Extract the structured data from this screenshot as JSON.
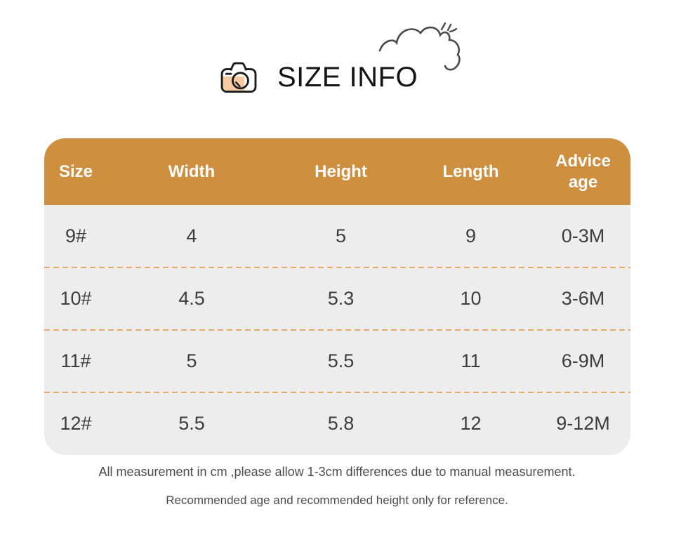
{
  "title": {
    "text": "SIZE INFO"
  },
  "decorations": {
    "camera_icon": "camera-icon",
    "cloud_doodle": "cloud-doodle-icon"
  },
  "table": {
    "headers": [
      "Size",
      "Width",
      "Height",
      "Length",
      "Advice age"
    ],
    "rows": [
      [
        "9#",
        "4",
        "5",
        "9",
        "0-3M"
      ],
      [
        "10#",
        "4.5",
        "5.3",
        "10",
        "3-6M"
      ],
      [
        "11#",
        "5",
        "5.5",
        "11",
        "6-9M"
      ],
      [
        "12#",
        "5.5",
        "5.8",
        "12",
        "9-12M"
      ]
    ]
  },
  "notes": [
    "All measurement in cm ,please allow 1-3cm differences due to manual measurement.",
    "Recommended age and recommended height only for reference."
  ],
  "colors": {
    "header_bg": "#CE8F3E",
    "row_bg": "#EDEDED",
    "row_divider_dash": "#E9A966",
    "header_text": "#FFFFFF",
    "cell_text": "#3D3D3D",
    "note_text": "#4D4D4D",
    "title_text": "#141414",
    "camera_fill": "#F8CBA3",
    "camera_stroke": "#1B1B1B",
    "doodle_stroke": "#4A4A4A"
  }
}
